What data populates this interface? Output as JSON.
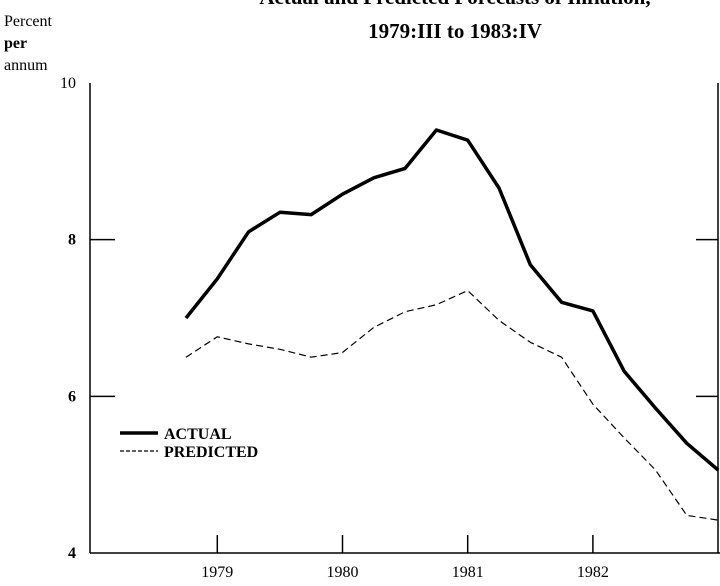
{
  "chart_data": {
    "type": "line",
    "title": "Actual and Predicted Forecasts of Inflation,",
    "subtitle": "1979:III to 1983:IV",
    "y_label": [
      "Percent",
      "per",
      "annum"
    ],
    "categories": [
      null,
      "1979",
      null,
      null,
      null,
      "1980",
      null,
      null,
      null,
      "1981",
      null,
      null,
      null,
      "1982",
      null,
      null,
      null,
      null
    ],
    "series": [
      {
        "name": "ACTUAL",
        "color": "#000000",
        "dash": "solid",
        "values": [
          7.0,
          7.5,
          8.1,
          8.35,
          8.32,
          8.58,
          8.79,
          8.91,
          9.4,
          9.27,
          8.66,
          7.68,
          7.2,
          7.09,
          6.32,
          5.85,
          5.4,
          5.06
        ]
      },
      {
        "name": "PREDICTED",
        "color": "#000000",
        "dash": "dashed",
        "values": [
          6.5,
          6.76,
          6.67,
          6.6,
          6.5,
          6.56,
          6.88,
          7.08,
          7.17,
          7.35,
          6.97,
          6.69,
          6.5,
          5.9,
          5.47,
          5.06,
          4.48,
          4.42
        ]
      }
    ],
    "ylim": [
      4,
      10
    ],
    "yticks": [
      4,
      6,
      8,
      10
    ],
    "legend": "lower left"
  }
}
